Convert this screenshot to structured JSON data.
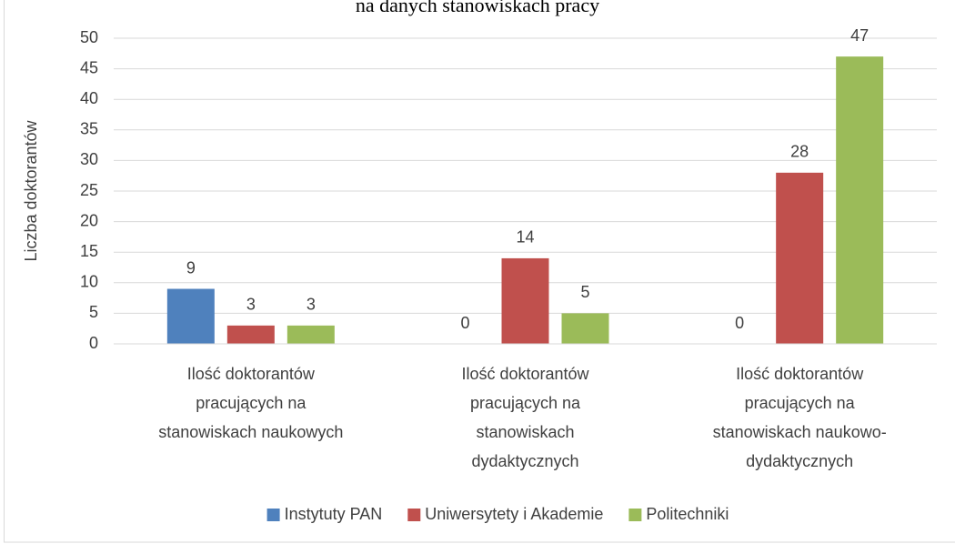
{
  "chart_data": {
    "type": "bar",
    "title": "na danych stanowiskach pracy",
    "y_label": "Liczba doktorantów",
    "categories": [
      [
        "Ilość doktorantów",
        "pracujących na",
        "stanowiskach naukowych"
      ],
      [
        "Ilość doktorantów",
        "pracujących na",
        "stanowiskach",
        "dydaktycznych"
      ],
      [
        "Ilość doktorantów",
        "pracujących na",
        "stanowiskach naukowo-",
        "dydaktycznych"
      ]
    ],
    "series": [
      {
        "name": "Instytuty PAN",
        "color": "#4f81bd",
        "values": [
          9,
          0,
          0
        ]
      },
      {
        "name": "Uniwersytety i Akademie",
        "color": "#c0504d",
        "values": [
          3,
          14,
          28
        ]
      },
      {
        "name": "Politechniki",
        "color": "#9bbb59",
        "values": [
          3,
          5,
          47
        ]
      }
    ],
    "ylim": [
      0,
      50
    ],
    "yticks": [
      0,
      5,
      10,
      15,
      20,
      25,
      30,
      35,
      40,
      45,
      50
    ],
    "grid": true,
    "legend": "bottom"
  }
}
